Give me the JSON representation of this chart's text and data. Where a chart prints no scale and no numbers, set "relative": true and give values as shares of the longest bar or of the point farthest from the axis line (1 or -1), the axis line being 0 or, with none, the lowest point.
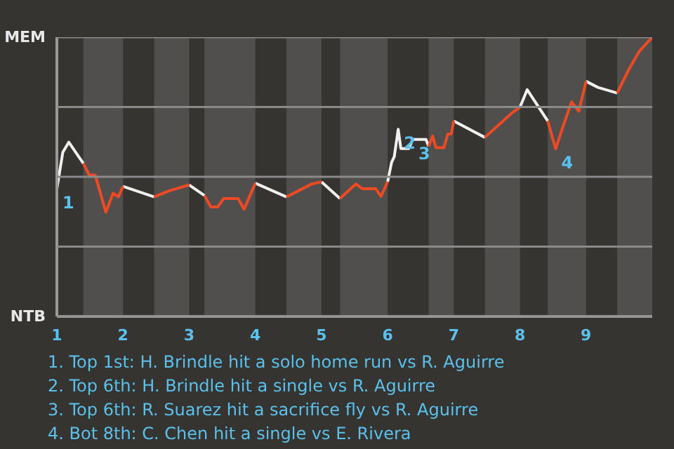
{
  "chart_data": {
    "type": "line",
    "relative": true,
    "xlim": [
      1,
      10
    ],
    "xticks": [
      1,
      2,
      3,
      4,
      5,
      6,
      7,
      8,
      9
    ],
    "series": [
      {
        "color": "#f0f0f0",
        "x": [
          1,
          1.09,
          1.18,
          1.4,
          1.7,
          2,
          2.47,
          2.73,
          3,
          3.23,
          3.6,
          4,
          4.47,
          4.73,
          5,
          5.28,
          5.6,
          6,
          6.06,
          6.1,
          6.16,
          6.2,
          6.32,
          6.38,
          6.58,
          6.62,
          6.8,
          7,
          7.47,
          7.73,
          8,
          8.11,
          8.42,
          8.7,
          9,
          9.18,
          9.47
        ],
        "values": [
          0.457,
          0.588,
          0.624,
          0.548,
          null,
          0.466,
          0.428,
          null,
          0.471,
          0.433,
          null,
          0.477,
          0.428,
          null,
          0.482,
          0.422,
          null,
          0.482,
          0.552,
          0.572,
          0.67,
          0.601,
          0.601,
          0.634,
          0.634,
          0.609,
          null,
          0.7,
          0.641,
          null,
          0.749,
          0.812,
          0.7,
          null,
          0.842,
          0.82,
          0.8
        ]
      },
      {
        "color": "#f04a24",
        "x": [
          1.4,
          1.49,
          1.58,
          1.74,
          1.85,
          1.93,
          2,
          2.23,
          2.47,
          2.7,
          3,
          3.12,
          3.23,
          3.33,
          3.43,
          3.52,
          3.74,
          3.83,
          4,
          4.23,
          4.47,
          4.85,
          5,
          5.14,
          5.28,
          5.52,
          5.62,
          5.82,
          5.9,
          6,
          6.3,
          6.62,
          6.68,
          6.73,
          6.85,
          6.91,
          6.96,
          7,
          7.23,
          7.47,
          7.68,
          7.87,
          8,
          8.2,
          8.42,
          8.54,
          8.66,
          8.78,
          8.89,
          9,
          9.2,
          9.47,
          9.65,
          9.8,
          10
        ],
        "values": [
          0.548,
          0.506,
          0.506,
          0.373,
          0.441,
          0.428,
          0.466,
          null,
          0.428,
          0.45,
          0.471,
          null,
          0.433,
          0.392,
          0.392,
          0.422,
          0.422,
          0.384,
          0.477,
          null,
          0.428,
          0.474,
          0.482,
          null,
          0.422,
          0.474,
          0.457,
          0.457,
          0.43,
          0.482,
          null,
          0.609,
          0.646,
          0.604,
          0.604,
          0.653,
          0.653,
          0.7,
          null,
          0.641,
          0.686,
          0.727,
          0.749,
          null,
          0.7,
          0.6,
          0.686,
          0.768,
          0.735,
          0.842,
          null,
          0.8,
          0.886,
          0.948,
          1.0
        ]
      }
    ],
    "bands": [
      {
        "axis": "x",
        "from": 1.4,
        "to": 2,
        "color": "#504f4d"
      },
      {
        "axis": "x",
        "from": 2.47,
        "to": 3,
        "color": "#504f4d"
      },
      {
        "axis": "x",
        "from": 3.23,
        "to": 4,
        "color": "#504f4d"
      },
      {
        "axis": "x",
        "from": 4.47,
        "to": 5,
        "color": "#504f4d"
      },
      {
        "axis": "x",
        "from": 5.28,
        "to": 6,
        "color": "#504f4d"
      },
      {
        "axis": "x",
        "from": 6.62,
        "to": 7,
        "color": "#504f4d"
      },
      {
        "axis": "x",
        "from": 7.47,
        "to": 8,
        "color": "#504f4d"
      },
      {
        "axis": "x",
        "from": 8.42,
        "to": 9,
        "color": "#504f4d"
      },
      {
        "axis": "x",
        "from": 9.47,
        "to": 10,
        "color": "#504f4d"
      }
    ],
    "ref_lines": [
      {
        "axis": "y",
        "value": 1.0,
        "label": "MEM"
      },
      {
        "axis": "y",
        "value": 0.75
      },
      {
        "axis": "y",
        "value": 0.5
      },
      {
        "axis": "y",
        "value": 0.25
      },
      {
        "axis": "y",
        "value": 0,
        "label": "NTB"
      }
    ],
    "annotations": [
      {
        "text": "1",
        "x": 1,
        "y": 0.457
      },
      {
        "text": "2",
        "x": 6.16,
        "y": 0.67
      },
      {
        "text": "3",
        "x": 6.38,
        "y": 0.634
      },
      {
        "text": "4",
        "x": 8.54,
        "y": 0.6
      },
      "1. Top 1st: H. Brindle hit a solo home run vs R. Aguirre",
      "2. Top 6th: H. Brindle hit a single vs R. Aguirre",
      "3. Top 6th: R. Suarez hit a sacrifice fly vs R. Aguirre",
      "4. Bot 8th: C. Chen hit a single vs E. Rivera"
    ]
  }
}
